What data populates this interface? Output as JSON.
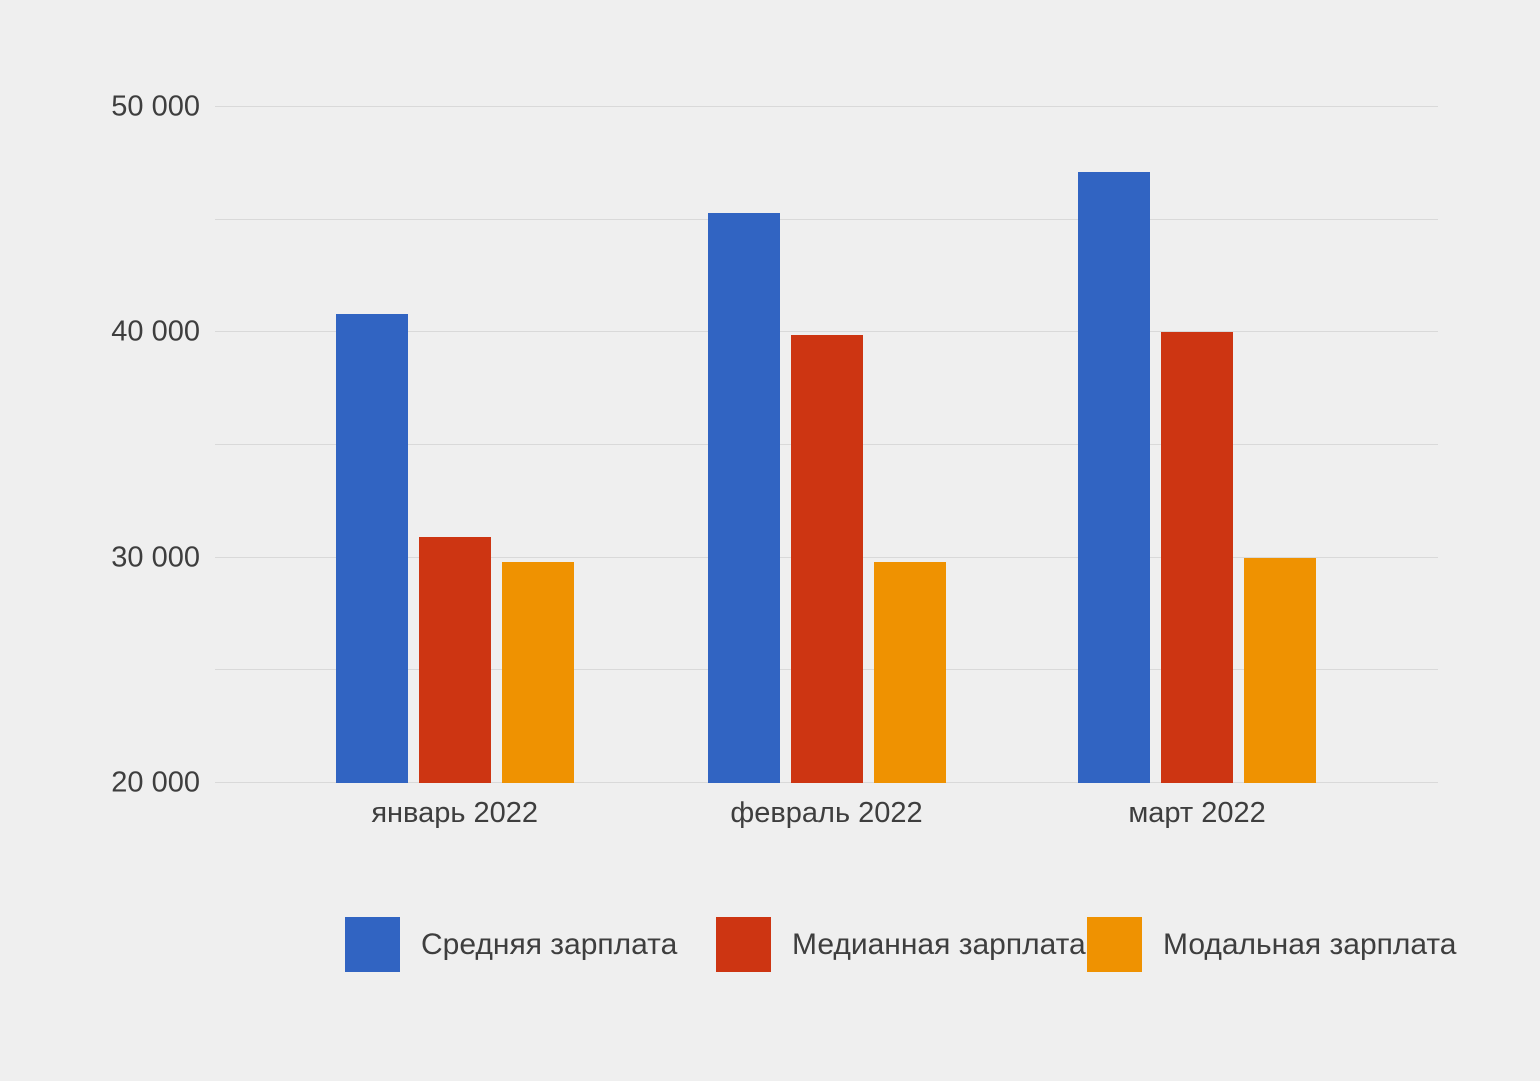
{
  "chart_data": {
    "type": "bar",
    "title": "",
    "categories": [
      "январь 2022",
      "февраль 2022",
      "март 2022"
    ],
    "series": [
      {
        "name": "Средняя зарплата",
        "color": "#3164c2",
        "values": [
          40800,
          45300,
          47100
        ]
      },
      {
        "name": "Медианная зарплата",
        "color": "#cd3512",
        "values": [
          30900,
          39900,
          40000
        ]
      },
      {
        "name": "Модальная зарплата",
        "color": "#ef9201",
        "values": [
          29800,
          29800,
          30000
        ]
      }
    ],
    "ylim": [
      20000,
      50000
    ],
    "y_gridlines": [
      20000,
      25000,
      30000,
      35000,
      40000,
      45000,
      50000
    ],
    "y_ticks": [
      {
        "value": 20000,
        "label": "20 000"
      },
      {
        "value": 30000,
        "label": "30 000"
      },
      {
        "value": 40000,
        "label": "40 000"
      },
      {
        "value": 50000,
        "label": "50 000"
      }
    ],
    "grid": true,
    "legend_position": "bottom"
  },
  "colors": {
    "background": "#efefef",
    "gridline": "#d9d9d9",
    "text": "#3e3e3e"
  }
}
